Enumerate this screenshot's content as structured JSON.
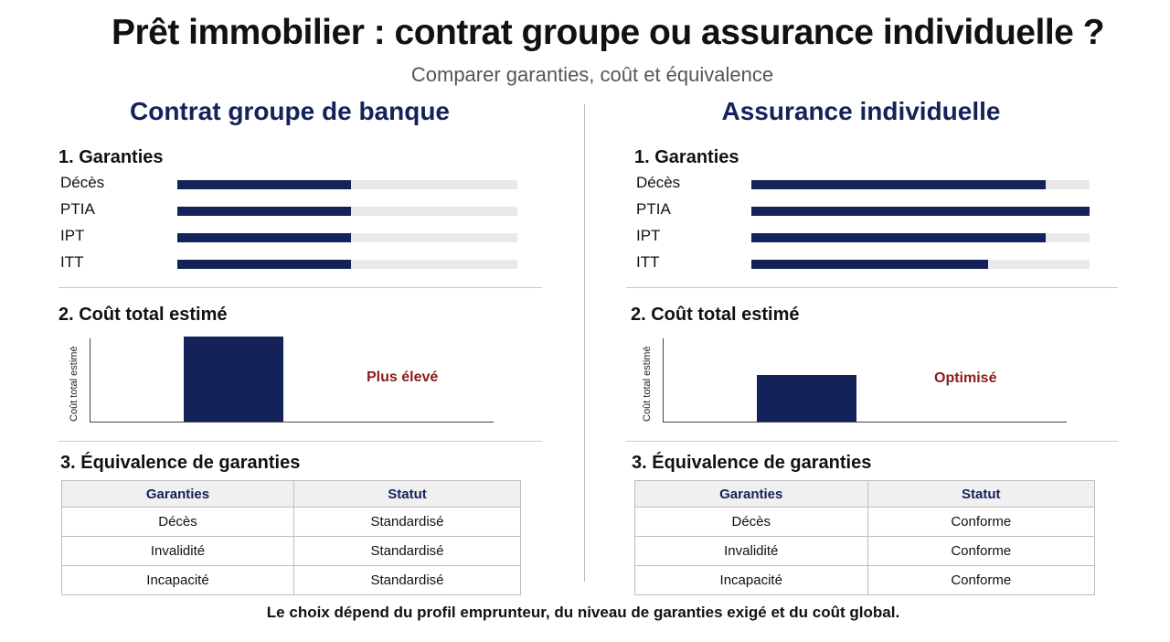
{
  "header": {
    "title": "Prêt immobilier : contrat groupe ou assurance individuelle ?",
    "subtitle": "Comparer garanties, coût et équivalence"
  },
  "colors": {
    "navy": "#14225a",
    "track": "#e9e9e9",
    "accent_red": "#8b1a1a"
  },
  "panels": [
    {
      "title": "Contrat groupe de banque",
      "guarantees_heading": "1. Garanties",
      "cost_heading": "2. Coût total estimé",
      "equivalence_heading": "3. Équivalence de garanties",
      "cost_note": "Plus élevé",
      "table": {
        "headers": [
          "Garanties",
          "Statut"
        ],
        "rows": [
          [
            "Décès",
            "Standardisé"
          ],
          [
            "Invalidité",
            "Standardisé"
          ],
          [
            "Incapacité",
            "Standardisé"
          ]
        ]
      }
    },
    {
      "title": "Assurance individuelle",
      "guarantees_heading": "1. Garanties",
      "cost_heading": "2. Coût total estimé",
      "equivalence_heading": "3. Équivalence de garanties",
      "cost_note": "Optimisé",
      "table": {
        "headers": [
          "Garanties",
          "Statut"
        ],
        "rows": [
          [
            "Décès",
            "Conforme"
          ],
          [
            "Invalidité",
            "Conforme"
          ],
          [
            "Incapacité",
            "Conforme"
          ]
        ]
      }
    }
  ],
  "chart_data": [
    {
      "type": "bar",
      "orientation": "horizontal",
      "categories": [
        "Décès",
        "PTIA",
        "IPT",
        "ITT"
      ],
      "values": [
        0.51,
        0.51,
        0.51,
        0.51
      ],
      "xlim": [
        0,
        1
      ]
    },
    {
      "type": "bar",
      "orientation": "horizontal",
      "categories": [
        "Décès",
        "PTIA",
        "IPT",
        "ITT"
      ],
      "values": [
        0.87,
        1.0,
        0.87,
        0.7
      ],
      "xlim": [
        0,
        1
      ]
    },
    {
      "type": "bar",
      "categories": [
        ""
      ],
      "values": [
        1.0
      ],
      "ylabel": "Coût total estimé",
      "ylim": [
        0,
        1
      ],
      "annotation": "Plus élevé"
    },
    {
      "type": "bar",
      "categories": [
        ""
      ],
      "values": [
        0.55
      ],
      "ylabel": "Coût total estimé",
      "ylim": [
        0,
        1
      ],
      "annotation": "Optimisé"
    }
  ],
  "footer": "Le choix dépend du profil emprunteur, du niveau de garanties exigé et du coût global."
}
